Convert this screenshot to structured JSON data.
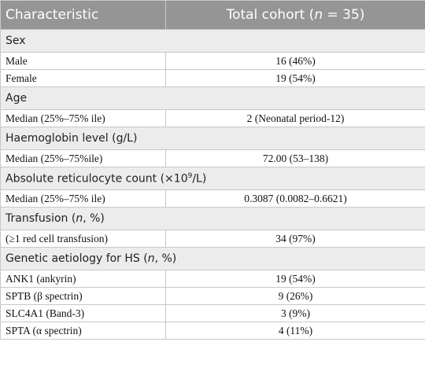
{
  "table": {
    "header": {
      "col1": "Characteristic",
      "col2": [
        "Total cohort (",
        "n",
        " = 35)"
      ]
    },
    "sections": [
      {
        "title": [
          "Sex"
        ],
        "rows": [
          [
            "Male",
            "16 (46%)"
          ],
          [
            "Female",
            "19 (54%)"
          ]
        ]
      },
      {
        "title": [
          "Age"
        ],
        "rows": [
          [
            "Median (25%–75% ile)",
            "2 (Neonatal period-12)"
          ]
        ]
      },
      {
        "title": [
          "Haemoglobin level (g/L)"
        ],
        "rows": [
          [
            "Median (25%–75%ile)",
            "72.00 (53–138)"
          ]
        ]
      },
      {
        "title": [
          "Absolute reticulocyte count (×10",
          "9",
          "/L)"
        ],
        "rows": [
          [
            "Median (25%–75% ile)",
            "0.3087 (0.0082–0.6621)"
          ]
        ]
      },
      {
        "title": [
          "Transfusion (",
          "n",
          ", %)"
        ],
        "rows": [
          [
            "(≥1 red cell transfusion)",
            "34 (97%)"
          ]
        ]
      },
      {
        "title": [
          "Genetic aetiology for HS (",
          "n",
          ", %)"
        ],
        "rows": [
          [
            "ANK1 (ankyrin)",
            "19 (54%)"
          ],
          [
            "SPTB (β spectrin)",
            "9 (26%)"
          ],
          [
            "SLC4A1 (Band-3)",
            "3 (9%)"
          ],
          [
            "SPTA (α spectrin)",
            "4 (11%)"
          ]
        ]
      }
    ]
  }
}
